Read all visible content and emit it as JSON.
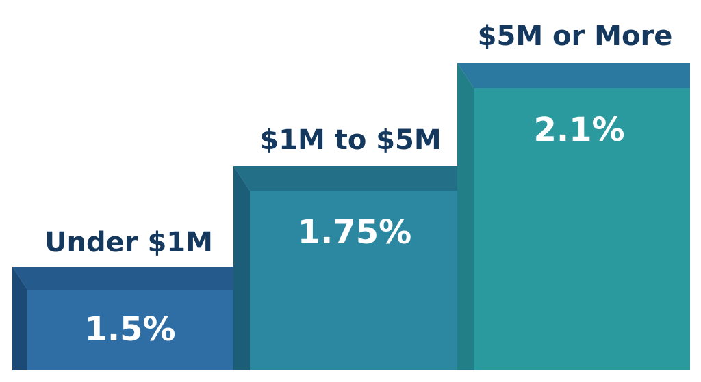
{
  "steps": [
    {
      "label": "Under $1M",
      "value": "1.5%",
      "front_color": "#2f6ea5",
      "top_color": "#245a8c",
      "side_color": "#1b4a76"
    },
    {
      "label": "$1M to $5M",
      "value": "1.75%",
      "front_color": "#2b88a0",
      "top_color": "#236f88",
      "side_color": "#1c5d78"
    },
    {
      "label": "$5M or More",
      "value": "2.1%",
      "front_color": "#2a9a9e",
      "top_color": "#2b78a0",
      "side_color": "#237f87"
    }
  ],
  "colors": {
    "label_text": "#14385e",
    "value_text": "#ffffff"
  }
}
